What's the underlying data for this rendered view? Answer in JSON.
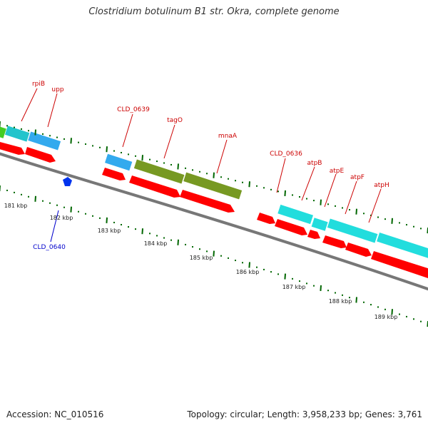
{
  "header": {
    "title": "Clostridium botulinum B1 str. Okra, complete genome"
  },
  "footer": {
    "accession": "Accession: NC_010516",
    "summary": "Topology: circular; Length: 3,958,233 bp; Genes: 3,761"
  },
  "colors": {
    "label_red": "#cc0000",
    "label_blue": "#0000cc",
    "cds_red": "#ff0000",
    "gene_blue": "#33aaee",
    "gene_cyan": "#22dddd",
    "gene_olive": "#779922",
    "gene_green": "#44cc22",
    "backbone": "#888888",
    "tick_green": "#006600"
  },
  "gene_labels": [
    {
      "text": "rpiB",
      "color": "red"
    },
    {
      "text": "upp",
      "color": "red"
    },
    {
      "text": "CLD_0639",
      "color": "red"
    },
    {
      "text": "tagO",
      "color": "red"
    },
    {
      "text": "mnaA",
      "color": "red"
    },
    {
      "text": "CLD_0636",
      "color": "red"
    },
    {
      "text": "atpB",
      "color": "red"
    },
    {
      "text": "atpE",
      "color": "red"
    },
    {
      "text": "atpF",
      "color": "red"
    },
    {
      "text": "atpH",
      "color": "red"
    },
    {
      "text": "CLD_0640",
      "color": "blue"
    }
  ],
  "kbp_labels": [
    "181 kbp",
    "182 kbp",
    "183 kbp",
    "184 kbp",
    "185 kbp",
    "186 kbp",
    "187 kbp",
    "188 kbp",
    "189 kbp"
  ]
}
